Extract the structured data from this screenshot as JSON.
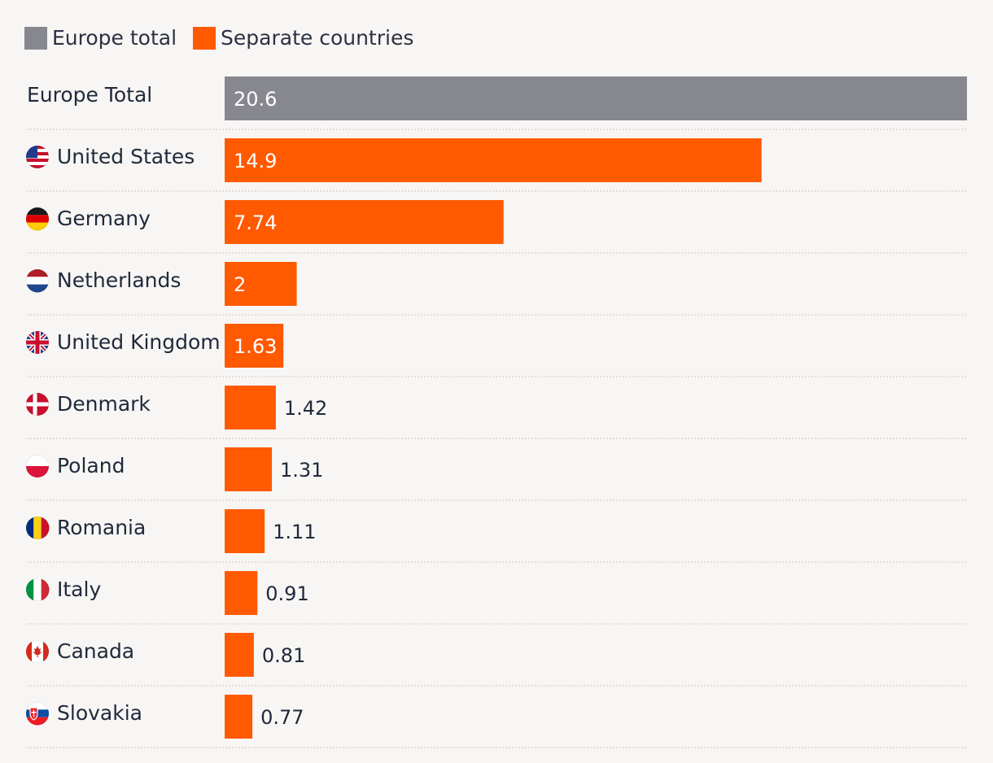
{
  "chart_data": {
    "type": "bar",
    "orientation": "horizontal",
    "legend": [
      {
        "label": "Europe total",
        "color": "#878790"
      },
      {
        "label": "Separate countries",
        "color": "#ff5a00"
      }
    ],
    "categories": [
      "Europe Total",
      "United States",
      "Germany",
      "Netherlands",
      "United Kingdom",
      "Denmark",
      "Poland",
      "Romania",
      "Italy",
      "Canada",
      "Slovakia"
    ],
    "values": [
      20.6,
      14.9,
      7.74,
      2,
      1.63,
      1.42,
      1.31,
      1.11,
      0.91,
      0.81,
      0.77
    ],
    "value_labels": [
      "20.6",
      "14.9",
      "7.74",
      "2",
      "1.63",
      "1.42",
      "1.31",
      "1.11",
      "0.91",
      "0.81",
      "0.77"
    ],
    "series_group": [
      "europe",
      "country",
      "country",
      "country",
      "country",
      "country",
      "country",
      "country",
      "country",
      "country",
      "country"
    ],
    "flags": [
      "",
      "us-flag-icon",
      "de-flag-icon",
      "nl-flag-icon",
      "uk-flag-icon",
      "dk-flag-icon",
      "pl-flag-icon",
      "ro-flag-icon",
      "it-flag-icon",
      "ca-flag-icon",
      "sk-flag-icon"
    ],
    "xlim": [
      0,
      20.6
    ],
    "grid": false,
    "legend_position": "top-left"
  }
}
